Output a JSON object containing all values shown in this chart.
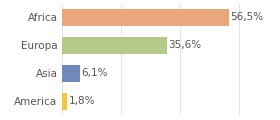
{
  "categories": [
    "America",
    "Asia",
    "Europa",
    "Africa"
  ],
  "values": [
    1.8,
    6.1,
    35.6,
    56.5
  ],
  "bar_colors": [
    "#f2c44e",
    "#7088bb",
    "#b5c98a",
    "#e8a87c"
  ],
  "labels": [
    "1,8%",
    "6,1%",
    "35,6%",
    "56,5%"
  ],
  "xlim": [
    0,
    72
  ],
  "background_color": "#ffffff",
  "label_fontsize": 7.5,
  "tick_fontsize": 7.5,
  "bar_height": 0.62,
  "grid_color": "#e0e0e0",
  "text_color": "#555555"
}
